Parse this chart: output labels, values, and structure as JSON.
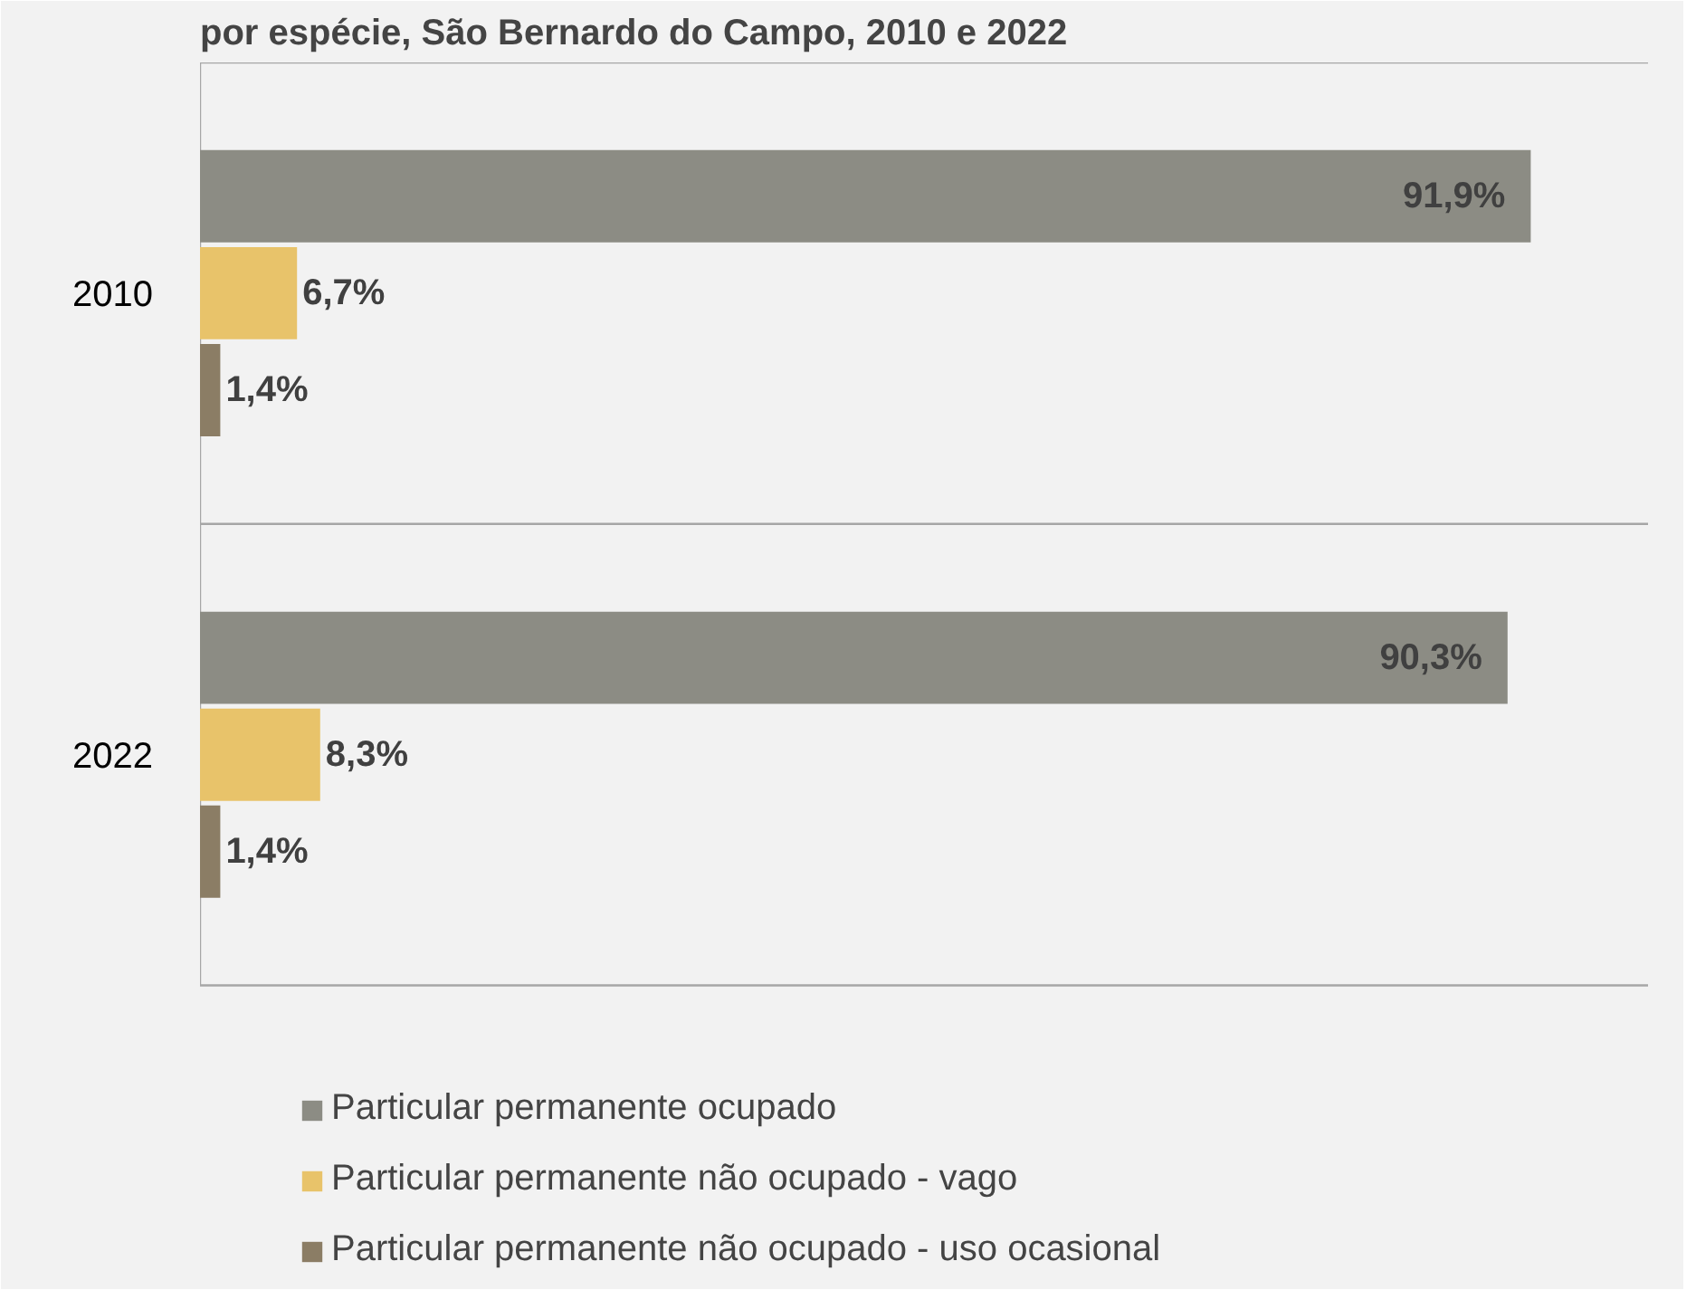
{
  "chart_data": {
    "type": "bar",
    "orientation": "horizontal",
    "title": "por espécie, São Bernardo do Campo, 2010 e 2022",
    "categories": [
      "2010",
      "2022"
    ],
    "series": [
      {
        "name": "Particular permanente ocupado",
        "color": "#8c8c84",
        "values": [
          91.9,
          90.3
        ],
        "value_labels": [
          "91,9%",
          "90,3%"
        ]
      },
      {
        "name": "Particular permanente não ocupado - vago",
        "color": "#e8c36a",
        "values": [
          6.7,
          8.3
        ],
        "value_labels": [
          "6,7%",
          "8,3%"
        ]
      },
      {
        "name": "Particular permanente não ocupado - uso ocasional",
        "color": "#8b7d65",
        "values": [
          1.4,
          1.4
        ],
        "value_labels": [
          "1,4%",
          "1,4%"
        ]
      }
    ],
    "xlim": [
      0,
      100
    ],
    "tick_labels": "y",
    "grid": true,
    "legend": "bottom"
  }
}
